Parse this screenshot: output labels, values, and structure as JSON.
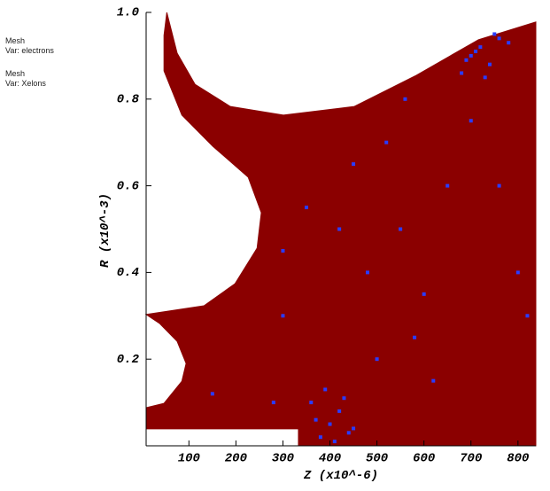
{
  "chart_data": {
    "type": "scatter",
    "xlabel": "Z  (x10^-6)",
    "ylabel": "R  (x10^-3)",
    "xlim": [
      9,
      838
    ],
    "ylim": [
      0,
      1.0
    ],
    "xticks": [
      100,
      200,
      300,
      400,
      500,
      600,
      700,
      800
    ],
    "yticks": [
      0.2,
      0.4,
      0.6,
      0.8,
      {
        "value": 1,
        "label": "1.0"
      }
    ],
    "series": [
      {
        "label": "Mesh",
        "name": "Var: electrons",
        "color": "#8b0000",
        "shape": "polygon",
        "x": [
          9,
          9,
          47,
          85,
          94,
          75,
          38,
          9,
          132,
          198,
          245,
          254,
          226,
          151,
          85,
          47,
          47,
          53,
          75,
          113,
          188,
          301,
          452,
          584,
          716,
          838,
          838,
          333,
          333
        ],
        "y": [
          0.039,
          0.088,
          0.098,
          0.149,
          0.19,
          0.241,
          0.282,
          0.303,
          0.323,
          0.374,
          0.456,
          0.538,
          0.62,
          0.691,
          0.763,
          0.865,
          0.947,
          1.0,
          0.906,
          0.834,
          0.783,
          0.763,
          0.783,
          0.855,
          0.937,
          0.978,
          0,
          0,
          0.039
        ]
      },
      {
        "label": "Mesh",
        "name": "Var: Xelons",
        "color": "#2a3cff",
        "shape": "points",
        "x": [
          380,
          400,
          420,
          360,
          440,
          390,
          410,
          370,
          430,
          450,
          700,
          720,
          740,
          760,
          680,
          780,
          750,
          730,
          710,
          690,
          300,
          500,
          550,
          600,
          300,
          450,
          650,
          800,
          520,
          620,
          150,
          350,
          480,
          580,
          700,
          820,
          280,
          560,
          760,
          420
        ],
        "y": [
          0.02,
          0.05,
          0.08,
          0.1,
          0.03,
          0.13,
          0.01,
          0.06,
          0.11,
          0.04,
          0.9,
          0.92,
          0.88,
          0.94,
          0.86,
          0.93,
          0.95,
          0.85,
          0.91,
          0.89,
          0.3,
          0.2,
          0.5,
          0.35,
          0.45,
          0.65,
          0.6,
          0.4,
          0.7,
          0.15,
          0.12,
          0.55,
          0.4,
          0.25,
          0.75,
          0.3,
          0.1,
          0.8,
          0.6,
          0.5
        ]
      }
    ]
  }
}
